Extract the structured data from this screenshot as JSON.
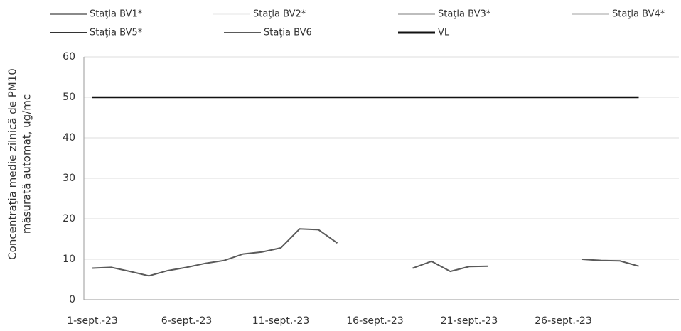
{
  "chart_data": {
    "type": "line",
    "ylabel": [
      "Concentraţia medie zilnică de PM10",
      "măsurată automat, ug/mc"
    ],
    "categories": [
      "1-sept.-23",
      null,
      null,
      null,
      null,
      "6-sept.-23",
      null,
      null,
      null,
      null,
      "11-sept.-23",
      null,
      null,
      null,
      null,
      "16-sept.-23",
      null,
      null,
      null,
      null,
      "21-sept.-23",
      null,
      null,
      null,
      null,
      "26-sept.-23",
      null,
      null,
      null,
      null
    ],
    "series": [
      {
        "name": "Staţia BV1*",
        "color": "#8a8a8a",
        "values": [
          null,
          null,
          null,
          null,
          null,
          null,
          null,
          null,
          null,
          null,
          null,
          null,
          null,
          null,
          null,
          null,
          null,
          null,
          null,
          null,
          null,
          null,
          null,
          null,
          null,
          null,
          null,
          null,
          null,
          null
        ]
      },
      {
        "name": "Staţia BV2*",
        "color": "#f2f2f2",
        "values": [
          null,
          null,
          null,
          null,
          null,
          null,
          null,
          null,
          null,
          null,
          null,
          null,
          null,
          null,
          null,
          null,
          null,
          null,
          null,
          null,
          null,
          null,
          null,
          null,
          null,
          null,
          null,
          null,
          null,
          null
        ]
      },
      {
        "name": "Staţia BV3*",
        "color": "#bdbdbd",
        "values": [
          null,
          null,
          null,
          null,
          null,
          null,
          null,
          null,
          null,
          null,
          null,
          null,
          null,
          null,
          null,
          null,
          null,
          null,
          null,
          null,
          null,
          null,
          null,
          null,
          null,
          null,
          null,
          null,
          null,
          null
        ]
      },
      {
        "name": "Staţia BV4*",
        "color": "#d0d0d0",
        "values": [
          null,
          null,
          null,
          null,
          null,
          null,
          null,
          null,
          null,
          null,
          null,
          null,
          null,
          null,
          null,
          null,
          null,
          null,
          null,
          null,
          null,
          null,
          null,
          null,
          null,
          null,
          null,
          null,
          null,
          null
        ]
      },
      {
        "name": "Staţia BV5*",
        "color": "#333333",
        "values": [
          null,
          null,
          null,
          null,
          null,
          null,
          null,
          null,
          null,
          null,
          null,
          null,
          null,
          null,
          null,
          null,
          null,
          null,
          null,
          null,
          null,
          null,
          null,
          null,
          null,
          null,
          null,
          null,
          null,
          null
        ]
      },
      {
        "name": "Staţia BV6",
        "color": "#5a5a5a",
        "values": [
          7.8,
          8,
          7,
          5.9,
          7.2,
          8,
          9,
          9.7,
          11.3,
          11.8,
          12.8,
          17.5,
          17.3,
          14,
          null,
          null,
          null,
          7.8,
          9.5,
          7,
          8.2,
          8.3,
          null,
          null,
          null,
          null,
          10,
          9.7,
          9.6,
          8.3
        ]
      },
      {
        "name": "VL",
        "color": "#111111",
        "values": [
          50,
          50,
          50,
          50,
          50,
          50,
          50,
          50,
          50,
          50,
          50,
          50,
          50,
          50,
          50,
          50,
          50,
          50,
          50,
          50,
          50,
          50,
          50,
          50,
          50,
          50,
          50,
          50,
          50,
          50
        ]
      }
    ],
    "ylim": [
      0,
      60
    ],
    "yticks": [
      0,
      10,
      20,
      30,
      40,
      50,
      60
    ],
    "grid": true
  }
}
